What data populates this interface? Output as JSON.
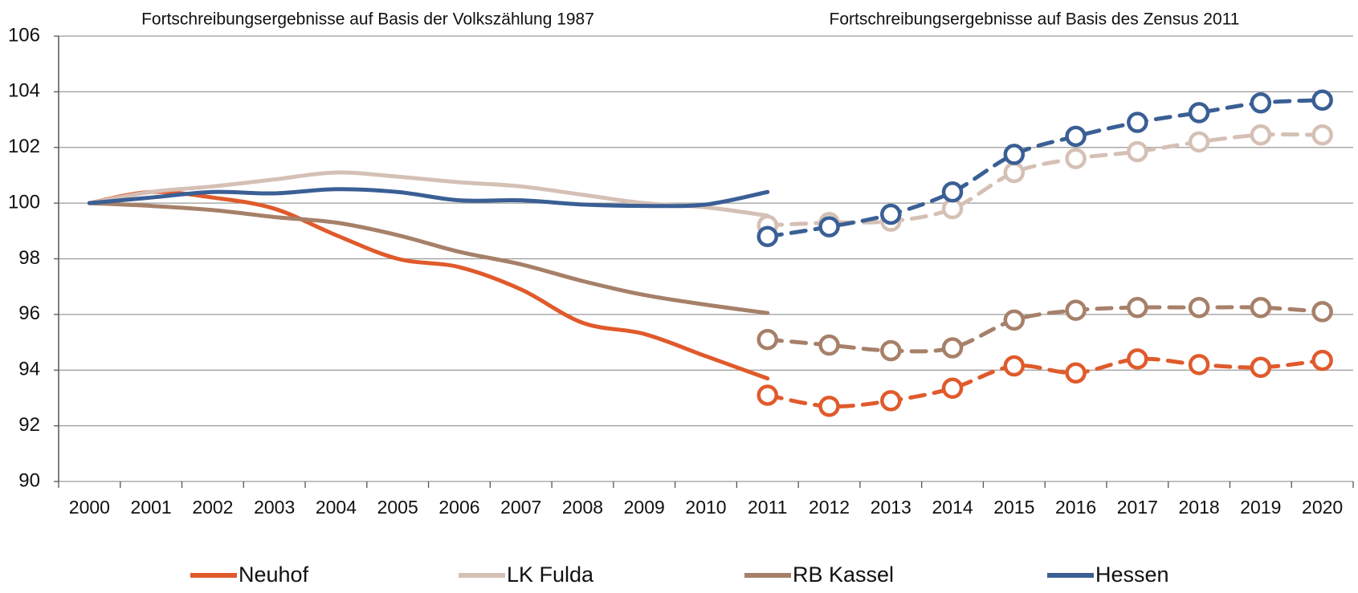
{
  "chart_data": {
    "type": "line",
    "annotations": [
      "Fortschreibungsergebnisse auf Basis der Volkszählung 1987",
      "Fortschreibungsergebnisse auf Basis des Zensus 2011"
    ],
    "categories": [
      "2000",
      "2001",
      "2002",
      "2003",
      "2004",
      "2005",
      "2006",
      "2007",
      "2008",
      "2009",
      "2010",
      "2011",
      "2012",
      "2013",
      "2014",
      "2015",
      "2016",
      "2017",
      "2018",
      "2019",
      "2020"
    ],
    "series": [
      {
        "name": "Neuhof",
        "color": "#e05a2b",
        "values": [
          100,
          100.4,
          100.2,
          99.8,
          98.85,
          98.0,
          97.7,
          96.9,
          95.7,
          95.3,
          94.5,
          93.7,
          null,
          null,
          null,
          null,
          null,
          null,
          null,
          null,
          null
        ],
        "values_census": [
          null,
          null,
          null,
          null,
          null,
          null,
          null,
          null,
          null,
          null,
          null,
          93.1,
          92.7,
          92.9,
          93.35,
          94.15,
          93.9,
          94.4,
          94.2,
          94.1,
          94.35
        ]
      },
      {
        "name": "LK Fulda",
        "color": "#d5c0b5",
        "values": [
          100,
          100.4,
          100.6,
          100.85,
          101.1,
          100.95,
          100.75,
          100.6,
          100.3,
          100.0,
          99.85,
          99.55,
          null,
          null,
          null,
          null,
          null,
          null,
          null,
          null,
          null
        ],
        "values_census": [
          null,
          null,
          null,
          null,
          null,
          null,
          null,
          null,
          null,
          null,
          null,
          99.2,
          99.3,
          99.35,
          99.8,
          101.1,
          101.6,
          101.85,
          102.2,
          102.45,
          102.45
        ]
      },
      {
        "name": "RB Kassel",
        "color": "#a68069",
        "values": [
          100,
          99.9,
          99.75,
          99.5,
          99.3,
          98.85,
          98.25,
          97.8,
          97.2,
          96.7,
          96.35,
          96.05,
          null,
          null,
          null,
          null,
          null,
          null,
          null,
          null,
          null
        ],
        "values_census": [
          null,
          null,
          null,
          null,
          null,
          null,
          null,
          null,
          null,
          null,
          null,
          95.1,
          94.9,
          94.7,
          94.8,
          95.8,
          96.15,
          96.25,
          96.25,
          96.25,
          96.1
        ]
      },
      {
        "name": "Hessen",
        "color": "#3a5f95",
        "values": [
          100,
          100.2,
          100.4,
          100.35,
          100.5,
          100.4,
          100.1,
          100.1,
          99.95,
          99.9,
          99.95,
          100.4,
          null,
          null,
          null,
          null,
          null,
          null,
          null,
          null,
          null
        ],
        "values_census": [
          null,
          null,
          null,
          null,
          null,
          null,
          null,
          null,
          null,
          null,
          null,
          98.8,
          99.15,
          99.6,
          100.4,
          101.75,
          102.4,
          102.9,
          103.25,
          103.6,
          103.7
        ]
      }
    ],
    "ylim": [
      90,
      106
    ],
    "yticks": [
      90,
      92,
      94,
      96,
      98,
      100,
      102,
      104,
      106
    ],
    "grid": true,
    "legend": "bottom"
  }
}
